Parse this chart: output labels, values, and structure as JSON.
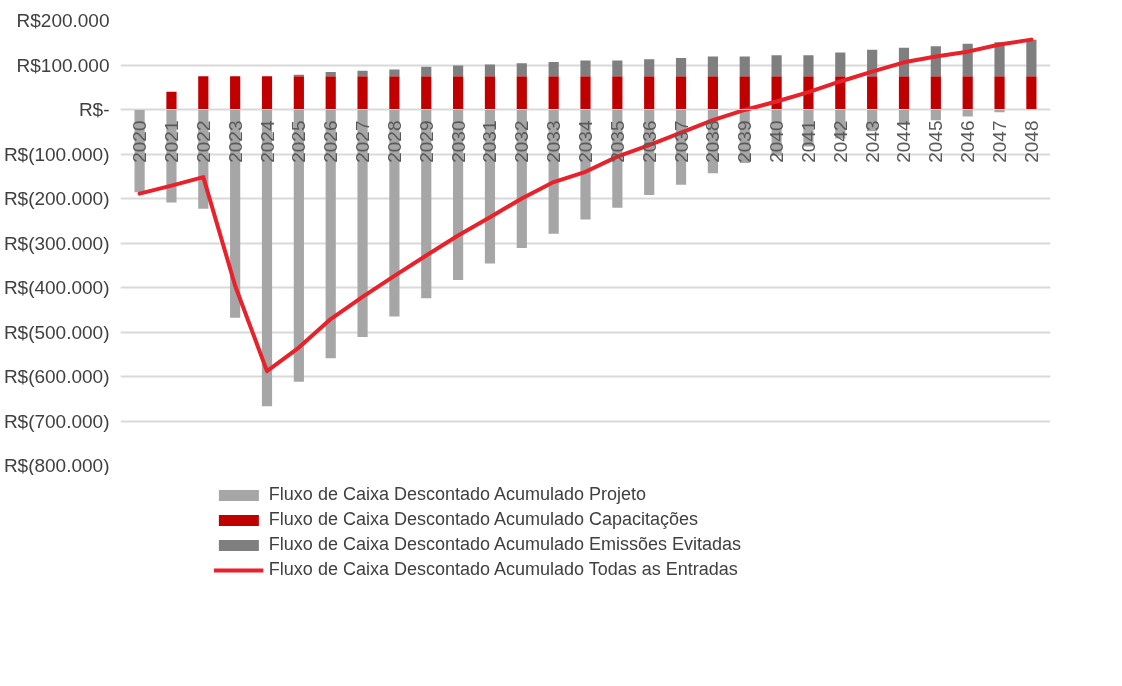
{
  "chart_data": {
    "type": "bar",
    "stacked": true,
    "categories": [
      "2020",
      "2021",
      "2022",
      "2023",
      "2024",
      "2025",
      "2026",
      "2027",
      "2028",
      "2029",
      "2030",
      "2031",
      "2032",
      "2033",
      "2034",
      "2035",
      "2036",
      "2037",
      "2038",
      "2039",
      "2040",
      "2041",
      "2042",
      "2043",
      "2044",
      "2045",
      "2046",
      "2047",
      "2048"
    ],
    "series": [
      {
        "name": "Fluxo de Caixa Descontado Acumulado Projeto",
        "color": "#a6a6a6",
        "values": [
          -186000,
          -209000,
          -223000,
          -468000,
          -667000,
          -612000,
          -559000,
          -511000,
          -465000,
          -424000,
          -383000,
          -346000,
          -311000,
          -279000,
          -247000,
          -221000,
          -192000,
          -169000,
          -143000,
          -120000,
          -104000,
          -83000,
          -65000,
          -49000,
          -33000,
          -24000,
          -16000,
          -6000,
          0
        ]
      },
      {
        "name": "Fluxo de Caixa Descontado Acumulado Capacitações",
        "color": "#c00000",
        "values": [
          0,
          40000,
          75000,
          75000,
          75000,
          75000,
          75000,
          75000,
          75000,
          75000,
          75000,
          75000,
          75000,
          75000,
          75000,
          75000,
          75000,
          75000,
          75000,
          75000,
          75000,
          75000,
          75000,
          75000,
          75000,
          75000,
          75000,
          75000,
          75000
        ]
      },
      {
        "name": "Fluxo de Caixa Descontado Acumulado Emissões Evitadas",
        "color": "#7f7f7f",
        "values": [
          0,
          0,
          0,
          0,
          0,
          3000,
          9000,
          12000,
          15000,
          21000,
          24000,
          26000,
          29000,
          32000,
          35000,
          35000,
          38000,
          41000,
          44000,
          44000,
          47000,
          47000,
          53000,
          59000,
          64000,
          67000,
          73000,
          76000,
          82000
        ]
      },
      {
        "name": "Fluxo de Caixa Descontado Acumulado Todas as Entradas",
        "type": "line",
        "color": "#e8212a",
        "values": [
          -189000,
          -171000,
          -152000,
          -396000,
          -588000,
          -535000,
          -471000,
          -421000,
          -374000,
          -328000,
          -283000,
          -242000,
          -200000,
          -163000,
          -140000,
          -106000,
          -80000,
          -52000,
          -24000,
          -1000,
          18000,
          39000,
          63000,
          85000,
          106000,
          119000,
          130000,
          146000,
          157000
        ]
      }
    ],
    "ylim": [
      -800000,
      200000
    ],
    "yticks": [
      {
        "value": 200000,
        "label": "R$200.000"
      },
      {
        "value": 100000,
        "label": "R$100.000"
      },
      {
        "value": 0,
        "label": "R$-"
      },
      {
        "value": -100000,
        "label": "R$(100.000)"
      },
      {
        "value": -200000,
        "label": "R$(200.000)"
      },
      {
        "value": -300000,
        "label": "R$(300.000)"
      },
      {
        "value": -400000,
        "label": "R$(400.000)"
      },
      {
        "value": -500000,
        "label": "R$(500.000)"
      },
      {
        "value": -600000,
        "label": "R$(600.000)"
      },
      {
        "value": -700000,
        "label": "R$(700.000)"
      },
      {
        "value": -800000,
        "label": "R$(800.000)"
      }
    ],
    "grid": "y",
    "legend": "bottom"
  }
}
